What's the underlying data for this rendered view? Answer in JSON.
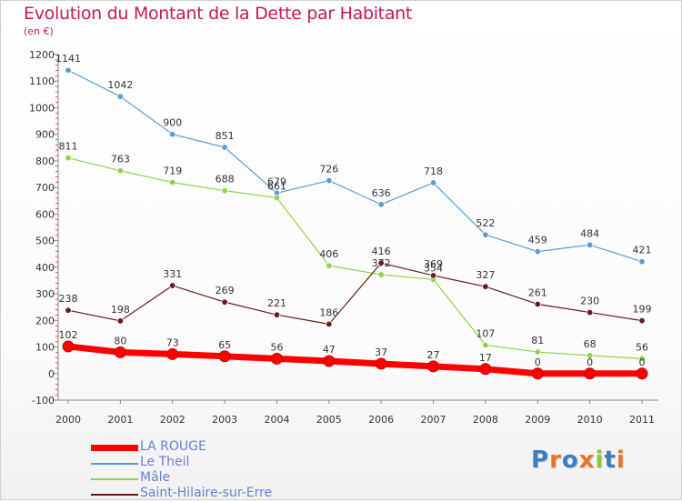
{
  "header": {
    "title": "Evolution du Montant de la Dette par Habitant",
    "unit": "(en €)"
  },
  "brand": {
    "text": "Proxiti",
    "letter_colors": [
      "#3a7fc1",
      "#e8742a",
      "#3a7fc1",
      "#e8742a",
      "#8cc63f",
      "#3a7fc1",
      "#e8742a"
    ]
  },
  "chart_data": {
    "type": "line",
    "categories": [
      "2000",
      "2001",
      "2002",
      "2003",
      "2004",
      "2005",
      "2006",
      "2007",
      "2008",
      "2009",
      "2010",
      "2011"
    ],
    "ylim": [
      -100,
      1200
    ],
    "yticks": [
      -100,
      0,
      100,
      200,
      300,
      400,
      500,
      600,
      700,
      800,
      900,
      1000,
      1100,
      1200
    ],
    "grid": false,
    "legend_position": "bottom-left",
    "series": [
      {
        "name": "Le Theil",
        "color": "#5b9bd5",
        "values": [
          1141,
          1042,
          900,
          851,
          679,
          726,
          636,
          718,
          522,
          459,
          484,
          421
        ]
      },
      {
        "name": "Mâle",
        "color": "#8fd34a",
        "values": [
          811,
          763,
          719,
          688,
          661,
          406,
          372,
          354,
          107,
          81,
          68,
          56
        ]
      },
      {
        "name": "Saint-Hilaire-sur-Erre",
        "color": "#6b1a1a",
        "values": [
          238,
          198,
          331,
          269,
          221,
          186,
          416,
          369,
          327,
          261,
          230,
          199
        ]
      },
      {
        "name": "LA ROUGE",
        "color": "#ff0000",
        "values": [
          102,
          80,
          73,
          65,
          56,
          47,
          37,
          27,
          17,
          0,
          0,
          0
        ]
      }
    ],
    "data_labels": {
      "Le Theil": [
        "1141",
        "1042",
        "900",
        "851",
        "679",
        "726",
        "636",
        "718",
        "522",
        "459",
        "484",
        "421"
      ],
      "Mâle": [
        "811",
        "763",
        "719",
        "688",
        "661",
        "406",
        "372",
        "354",
        "107",
        "81",
        "68",
        "56"
      ],
      "Saint-Hilaire-sur-Erre": [
        "238",
        "198",
        "331",
        "269",
        "221",
        "186",
        "416",
        "369",
        "327",
        "261",
        "230",
        "199"
      ],
      "LA ROUGE": [
        "102",
        "80",
        "73",
        "65",
        "56",
        "47",
        "37",
        "27",
        "17",
        "0",
        "0",
        "0"
      ]
    },
    "legend_order": [
      "LA ROUGE",
      "Le Theil",
      "Mâle",
      "Saint-Hilaire-sur-Erre"
    ]
  }
}
